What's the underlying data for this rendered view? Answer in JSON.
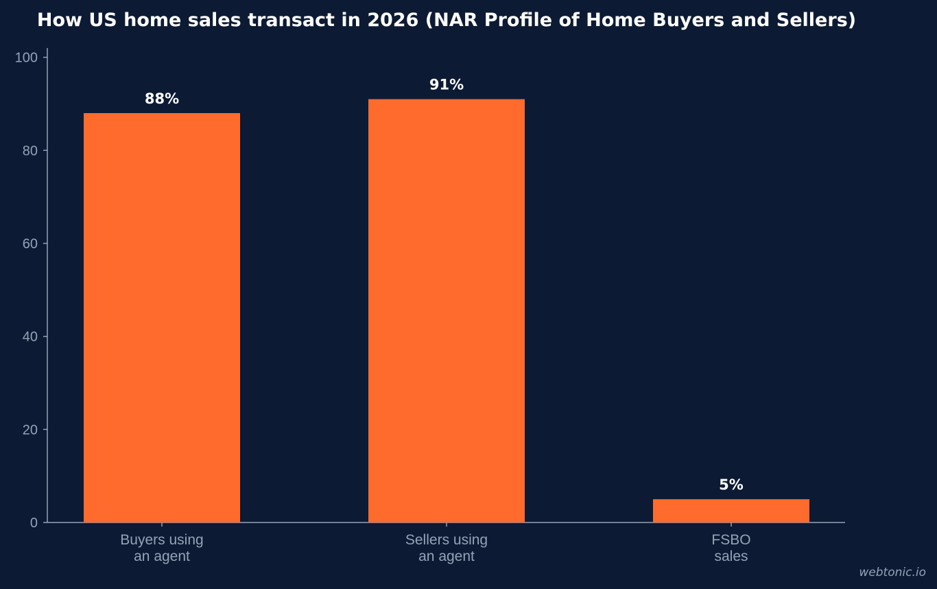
{
  "chart_data": {
    "type": "bar",
    "title": "How US home sales transact in 2026 (NAR Profile of Home Buyers and Sellers)",
    "categories": [
      [
        "Buyers using",
        "an agent"
      ],
      [
        "Sellers using",
        "an agent"
      ],
      [
        "FSBO",
        "sales"
      ]
    ],
    "values": [
      88,
      91,
      5
    ],
    "data_labels": [
      "88%",
      "91%",
      "5%"
    ],
    "ylim": [
      0,
      102
    ],
    "yticks": [
      0,
      20,
      40,
      60,
      80,
      100
    ],
    "grid": false,
    "legend": "none",
    "colors": {
      "background": "#0c1b33",
      "bar": "#ff6b2c",
      "axis": "#94a3b8",
      "text": "#ffffff",
      "tick_text": "#94a3b8"
    }
  },
  "watermark": "webtonic.io"
}
